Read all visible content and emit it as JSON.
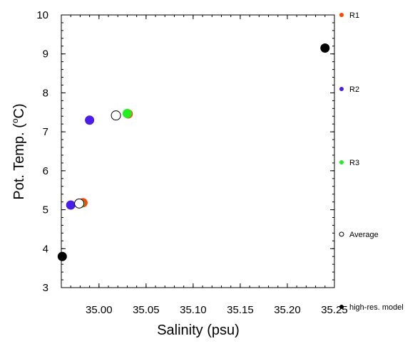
{
  "chart_data": {
    "type": "scatter",
    "xlabel": "Salinity (psu)",
    "ylabel_main": "Pot. Temp. (",
    "ylabel_sup": "o",
    "ylabel_end": "C)",
    "xlim": [
      34.96,
      35.25
    ],
    "ylim": [
      3,
      10
    ],
    "x_ticks": [
      35.0,
      35.05,
      35.1,
      35.15,
      35.2,
      35.25
    ],
    "x_tick_labels": [
      "35.00",
      "35.05",
      "35.10",
      "35.15",
      "35.20",
      "35.25"
    ],
    "y_ticks": [
      3,
      4,
      5,
      6,
      7,
      8,
      9,
      10
    ],
    "y_tick_labels": [
      "3",
      "4",
      "5",
      "6",
      "7",
      "8",
      "9",
      "10"
    ],
    "legend_placement": "right-outside",
    "series": [
      {
        "name": "R1",
        "color": "#ff4500",
        "marker": "filled-circle",
        "points": [
          {
            "x": 34.983,
            "y": 5.18
          },
          {
            "x": 35.031,
            "y": 7.46
          }
        ]
      },
      {
        "name": "R2",
        "color": "#4a1de8",
        "marker": "filled-circle",
        "points": [
          {
            "x": 34.97,
            "y": 5.12
          },
          {
            "x": 34.99,
            "y": 7.3
          }
        ]
      },
      {
        "name": "R3",
        "color": "#22ee22",
        "marker": "filled-circle",
        "points": [
          {
            "x": 34.98,
            "y": 5.16
          },
          {
            "x": 35.03,
            "y": 7.47
          }
        ]
      },
      {
        "name": "Average",
        "color": "#000000",
        "marker": "open-circle",
        "points": [
          {
            "x": 34.979,
            "y": 5.16
          },
          {
            "x": 35.018,
            "y": 7.42
          }
        ]
      },
      {
        "name": "high-res. model",
        "color": "#000000",
        "marker": "filled-circle",
        "points": [
          {
            "x": 34.961,
            "y": 3.8
          },
          {
            "x": 35.24,
            "y": 9.15
          }
        ]
      }
    ]
  }
}
